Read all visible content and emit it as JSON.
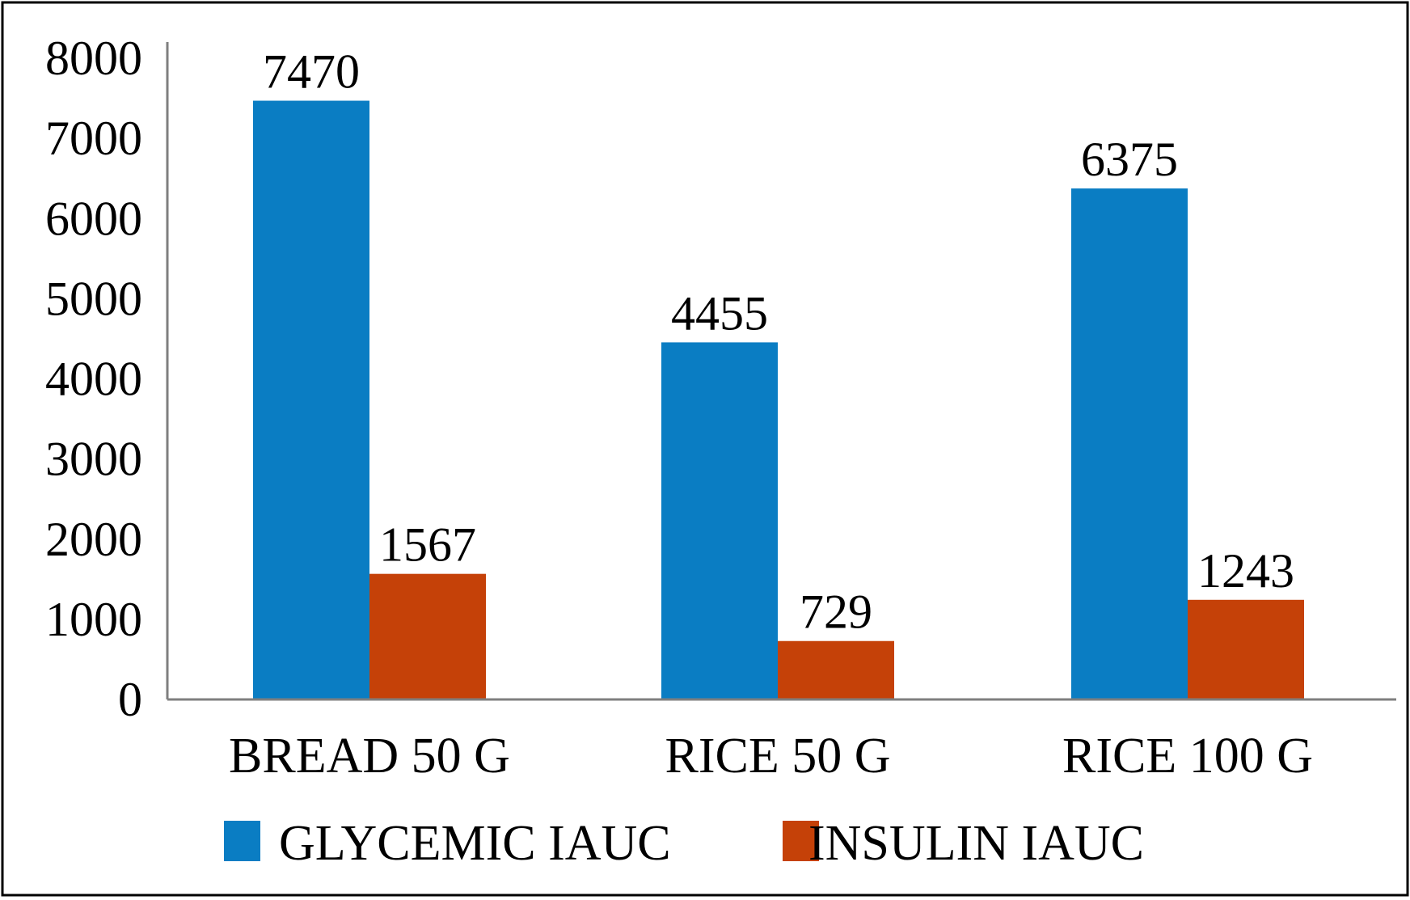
{
  "chart_data": {
    "type": "bar",
    "title": "",
    "xlabel": "",
    "ylabel": "",
    "categories": [
      "BREAD 50 G",
      "RICE 50 G",
      "RICE 100 G"
    ],
    "series": [
      {
        "name": "GLYCEMIC IAUC",
        "values": [
          7470,
          4455,
          6375
        ],
        "color": "#0A7DC3"
      },
      {
        "name": "INSULIN IAUC",
        "values": [
          1567,
          729,
          1243
        ],
        "color": "#C54108"
      }
    ],
    "ylim": [
      0,
      8000
    ],
    "yticks": [
      "0",
      "1000",
      "2000",
      "3000",
      "4000",
      "5000",
      "6000",
      "7000",
      "8000"
    ],
    "data_labels": [
      [
        "7470",
        "4455",
        "6375"
      ],
      [
        "1567",
        "729",
        "1243"
      ]
    ],
    "grid": false,
    "legend": "bottom"
  }
}
